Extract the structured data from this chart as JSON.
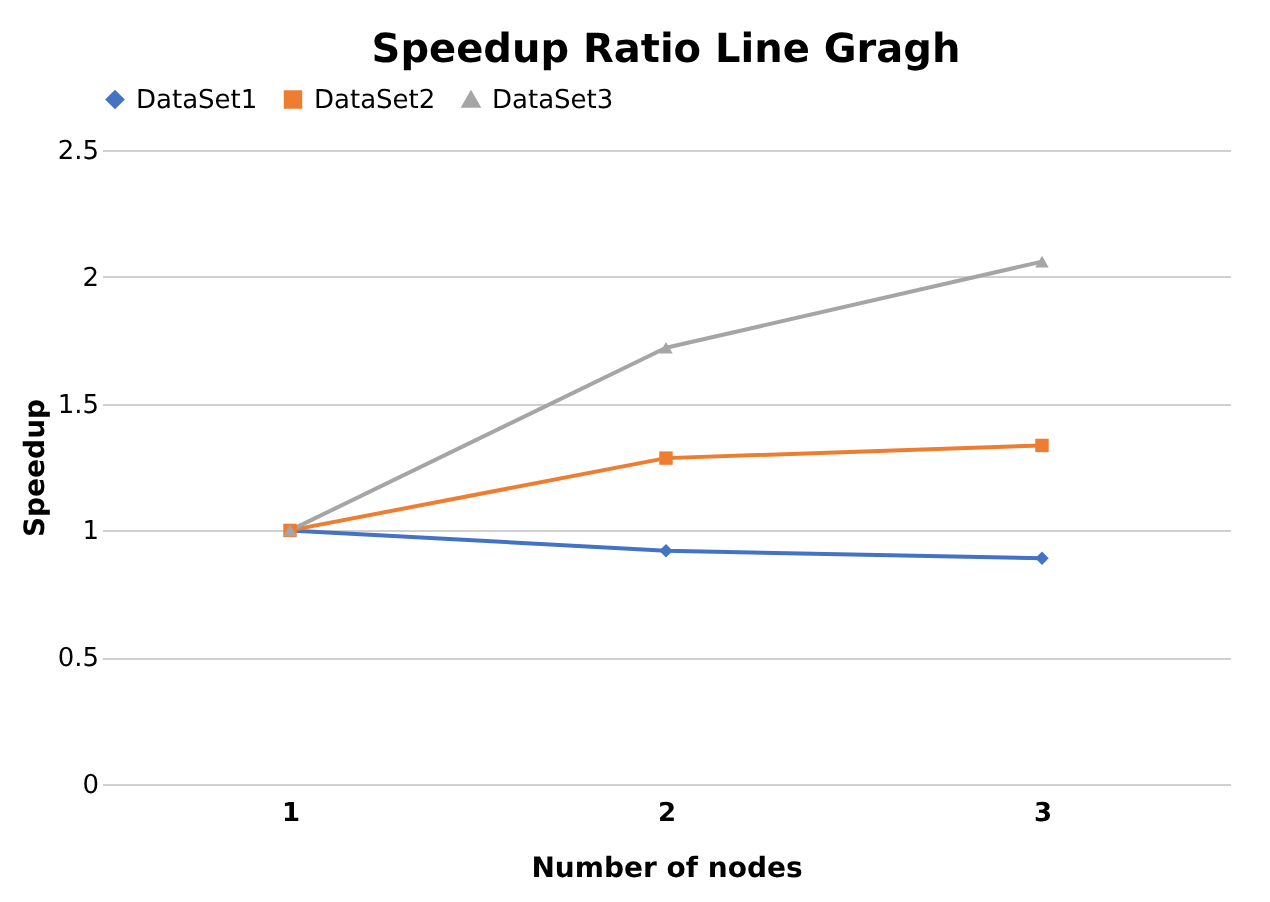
{
  "chart_data": {
    "type": "line",
    "title": "Speedup Ratio Line Gragh",
    "xlabel": "Number of nodes",
    "ylabel": "Speedup",
    "categories": [
      "1",
      "2",
      "3"
    ],
    "series": [
      {
        "name": "DataSet1",
        "color": "#4472c4",
        "marker": "diamond",
        "values": [
          1,
          0.92,
          0.89
        ]
      },
      {
        "name": "DataSet2",
        "color": "#ed7d31",
        "marker": "square",
        "values": [
          1,
          1.285,
          1.335
        ]
      },
      {
        "name": "DataSet3",
        "color": "#a5a5a5",
        "marker": "triangle",
        "values": [
          1,
          1.72,
          2.06
        ]
      }
    ],
    "ylim": [
      0,
      2.5
    ],
    "yticks": [
      0,
      0.5,
      1,
      1.5,
      2,
      2.5
    ],
    "grid": "y",
    "legend": "top"
  }
}
